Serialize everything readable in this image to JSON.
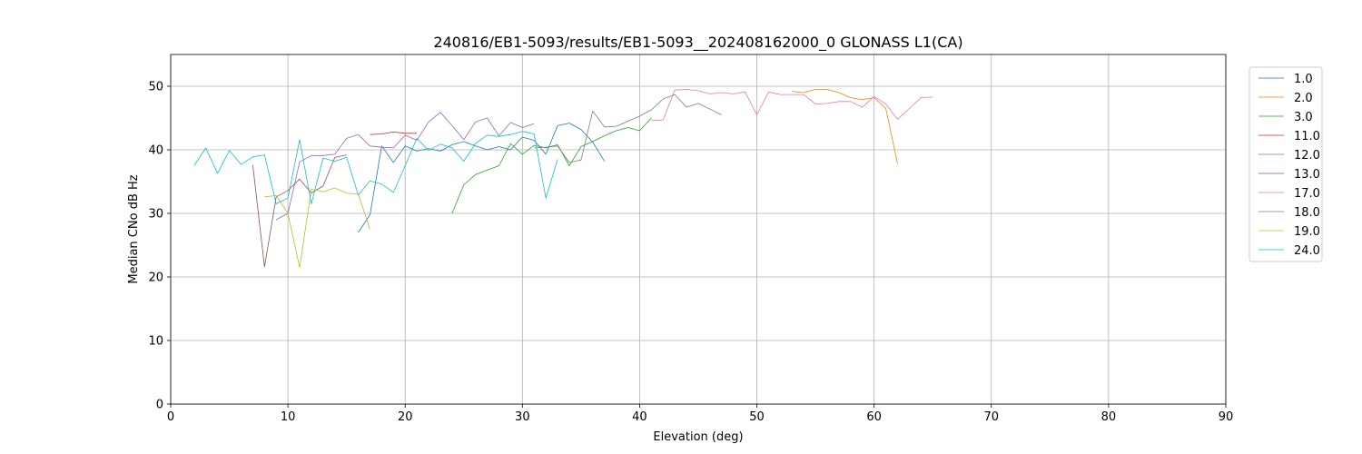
{
  "chart_data": {
    "type": "line",
    "title": "240816/EB1-5093/results/EB1-5093__202408162000_0 GLONASS L1(CA)",
    "xlabel": "Elevation (deg)",
    "ylabel": "Median CNo dB Hz",
    "xlim": [
      0,
      90
    ],
    "ylim": [
      0,
      55
    ],
    "xticks": [
      0,
      10,
      20,
      30,
      40,
      50,
      60,
      70,
      80,
      90
    ],
    "yticks": [
      0,
      10,
      20,
      30,
      40,
      50
    ],
    "grid": true,
    "legend_position": "top-right",
    "series": [
      {
        "name": "1.0",
        "color": "#1f77b4",
        "points": [
          [
            16,
            27.0
          ],
          [
            17,
            29.8
          ],
          [
            18,
            40.6
          ],
          [
            19,
            38.0
          ],
          [
            20,
            40.6
          ],
          [
            21,
            39.8
          ],
          [
            22,
            40.2
          ],
          [
            23,
            39.8
          ],
          [
            24,
            40.8
          ],
          [
            25,
            41.3
          ],
          [
            26,
            40.6
          ],
          [
            27,
            40.0
          ],
          [
            28,
            40.5
          ],
          [
            29,
            40.0
          ],
          [
            30,
            42.0
          ],
          [
            31,
            41.5
          ],
          [
            32,
            39.3
          ],
          [
            33,
            43.8
          ],
          [
            34,
            44.2
          ],
          [
            35,
            43.2
          ],
          [
            36,
            41.2
          ],
          [
            37,
            38.2
          ]
        ]
      },
      {
        "name": "2.0",
        "color": "#ff7f0e",
        "points": [
          [
            53,
            49.2
          ],
          [
            54,
            49.0
          ],
          [
            55,
            49.5
          ],
          [
            56,
            49.5
          ],
          [
            57,
            49.0
          ],
          [
            58,
            48.2
          ],
          [
            59,
            47.9
          ],
          [
            60,
            48.2
          ],
          [
            61,
            46.5
          ],
          [
            62,
            37.8
          ]
        ]
      },
      {
        "name": "3.0",
        "color": "#2ca02c",
        "points": [
          [
            24,
            30.0
          ],
          [
            25,
            34.5
          ],
          [
            26,
            36.1
          ],
          [
            27,
            36.8
          ],
          [
            28,
            37.5
          ],
          [
            29,
            41.0
          ],
          [
            30,
            39.3
          ],
          [
            31,
            40.7
          ],
          [
            32,
            40.3
          ],
          [
            33,
            40.8
          ],
          [
            34,
            37.5
          ],
          [
            35,
            40.5
          ],
          [
            36,
            41.3
          ],
          [
            37,
            42.2
          ],
          [
            38,
            43.0
          ],
          [
            39,
            43.5
          ],
          [
            40,
            43.0
          ],
          [
            41,
            45.0
          ]
        ]
      },
      {
        "name": "11.0",
        "color": "#d62728",
        "points": [
          [
            17,
            42.4
          ],
          [
            18,
            42.5
          ],
          [
            19,
            42.8
          ],
          [
            20,
            42.6
          ],
          [
            21,
            42.6
          ]
        ]
      },
      {
        "name": "12.0",
        "color": "#9467bd",
        "points": [
          [
            9,
            29.0
          ],
          [
            10,
            30.0
          ],
          [
            11,
            38.1
          ],
          [
            12,
            39.1
          ],
          [
            13,
            39.1
          ],
          [
            14,
            39.3
          ],
          [
            15,
            41.8
          ],
          [
            16,
            42.4
          ],
          [
            17,
            40.6
          ],
          [
            18,
            40.4
          ],
          [
            19,
            40.3
          ],
          [
            20,
            42.3
          ],
          [
            21,
            41.5
          ],
          [
            22,
            44.4
          ],
          [
            23,
            45.9
          ],
          [
            24,
            43.8
          ],
          [
            25,
            41.6
          ],
          [
            26,
            44.4
          ],
          [
            27,
            45.0
          ],
          [
            28,
            42.2
          ],
          [
            29,
            44.3
          ],
          [
            30,
            43.5
          ],
          [
            31,
            44.1
          ]
        ]
      },
      {
        "name": "13.0",
        "color": "#8c564b",
        "points": [
          [
            7,
            37.6
          ],
          [
            8,
            21.6
          ],
          [
            9,
            32.6
          ],
          [
            10,
            33.6
          ],
          [
            11,
            35.4
          ],
          [
            12,
            33.2
          ],
          [
            13,
            34.3
          ],
          [
            14,
            38.8
          ],
          [
            15,
            39.2
          ]
        ]
      },
      {
        "name": "17.0",
        "color": "#e377c2",
        "points": [
          [
            41,
            44.6
          ],
          [
            42,
            44.7
          ],
          [
            43,
            49.4
          ],
          [
            44,
            49.5
          ],
          [
            45,
            49.3
          ],
          [
            46,
            48.8
          ],
          [
            47,
            49.0
          ],
          [
            48,
            48.8
          ],
          [
            49,
            49.1
          ],
          [
            50,
            45.5
          ],
          [
            51,
            49.1
          ],
          [
            52,
            48.7
          ],
          [
            53,
            48.7
          ],
          [
            54,
            48.7
          ],
          [
            55,
            47.2
          ],
          [
            56,
            47.3
          ],
          [
            57,
            47.6
          ],
          [
            58,
            47.6
          ],
          [
            59,
            46.7
          ],
          [
            60,
            48.4
          ],
          [
            61,
            47.2
          ],
          [
            62,
            44.8
          ],
          [
            63,
            46.5
          ],
          [
            64,
            48.2
          ],
          [
            65,
            48.3
          ]
        ]
      },
      {
        "name": "18.0",
        "color": "#7f7f7f",
        "points": [
          [
            31,
            40.3
          ],
          [
            32,
            40.4
          ],
          [
            33,
            40.6
          ],
          [
            34,
            38.0
          ],
          [
            35,
            38.4
          ],
          [
            36,
            46.1
          ],
          [
            37,
            43.6
          ],
          [
            38,
            43.7
          ],
          [
            39,
            44.5
          ],
          [
            40,
            45.3
          ],
          [
            41,
            46.3
          ],
          [
            42,
            48.0
          ],
          [
            43,
            48.7
          ],
          [
            44,
            46.7
          ],
          [
            45,
            47.3
          ],
          [
            46,
            46.4
          ],
          [
            47,
            45.5
          ]
        ]
      },
      {
        "name": "19.0",
        "color": "#bcbd22",
        "points": [
          [
            8,
            32.6
          ],
          [
            9,
            32.8
          ],
          [
            10,
            30.0
          ],
          [
            11,
            21.5
          ],
          [
            12,
            33.8
          ],
          [
            13,
            33.4
          ],
          [
            14,
            34.0
          ],
          [
            15,
            33.2
          ],
          [
            16,
            33.0
          ],
          [
            17,
            27.5
          ]
        ]
      },
      {
        "name": "24.0",
        "color": "#17becf",
        "points": [
          [
            2,
            37.5
          ],
          [
            3,
            40.3
          ],
          [
            4,
            36.3
          ],
          [
            5,
            39.9
          ],
          [
            6,
            37.7
          ],
          [
            7,
            38.9
          ],
          [
            8,
            39.2
          ],
          [
            9,
            31.5
          ],
          [
            10,
            32.4
          ],
          [
            11,
            41.6
          ],
          [
            12,
            31.5
          ],
          [
            13,
            38.7
          ],
          [
            14,
            38.2
          ],
          [
            15,
            38.8
          ],
          [
            16,
            32.9
          ],
          [
            17,
            35.1
          ],
          [
            18,
            34.6
          ],
          [
            19,
            33.3
          ],
          [
            20,
            37.5
          ],
          [
            21,
            41.8
          ],
          [
            22,
            39.9
          ],
          [
            23,
            40.9
          ],
          [
            24,
            40.3
          ],
          [
            25,
            38.2
          ],
          [
            26,
            41.0
          ],
          [
            27,
            42.3
          ],
          [
            28,
            42.1
          ],
          [
            29,
            42.4
          ],
          [
            30,
            42.9
          ],
          [
            31,
            42.5
          ],
          [
            32,
            32.4
          ],
          [
            33,
            38.5
          ]
        ]
      }
    ]
  }
}
